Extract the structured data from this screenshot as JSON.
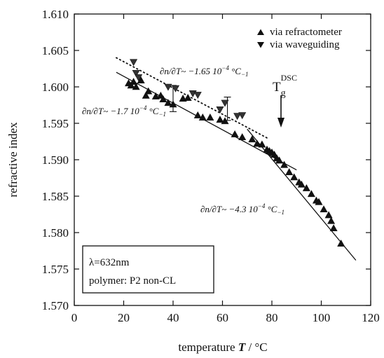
{
  "chart_data": {
    "type": "scatter",
    "xlabel": "temperature T / °C",
    "ylabel": "refractive index",
    "xlim": [
      0,
      120
    ],
    "ylim": [
      1.57,
      1.61
    ],
    "xticks": [
      "0",
      "20",
      "40",
      "60",
      "80",
      "100",
      "120"
    ],
    "yticks": [
      "1.570",
      "1.575",
      "1.580",
      "1.585",
      "1.590",
      "1.595",
      "1.600",
      "1.605",
      "1.610"
    ],
    "grid": false,
    "legend_position": "top-right",
    "series": [
      {
        "name": "via refractometer",
        "marker": "triangle-up",
        "points": [
          [
            22,
            1.6005
          ],
          [
            23,
            1.6002
          ],
          [
            24,
            1.6007
          ],
          [
            25,
            1.6
          ],
          [
            27,
            1.6009
          ],
          [
            29,
            1.5988
          ],
          [
            30,
            1.5994
          ],
          [
            33,
            1.5987
          ],
          [
            35,
            1.5988
          ],
          [
            36,
            1.5983
          ],
          [
            38,
            1.5978
          ],
          [
            40,
            1.5976
          ],
          [
            44,
            1.5984
          ],
          [
            46,
            1.5985
          ],
          [
            50,
            1.5961
          ],
          [
            52,
            1.5958
          ],
          [
            55,
            1.5958
          ],
          [
            59,
            1.5955
          ],
          [
            61,
            1.5953
          ],
          [
            65,
            1.5935
          ],
          [
            68,
            1.5931
          ],
          [
            72,
            1.5928
          ],
          [
            74,
            1.5922
          ],
          [
            76,
            1.5921
          ],
          [
            78,
            1.5914
          ],
          [
            79,
            1.5912
          ],
          [
            80,
            1.591
          ],
          [
            81,
            1.5907
          ],
          [
            82,
            1.5902
          ],
          [
            83,
            1.5899
          ],
          [
            85,
            1.5893
          ],
          [
            87,
            1.5883
          ],
          [
            89,
            1.5876
          ],
          [
            91,
            1.5869
          ],
          [
            92,
            1.5866
          ],
          [
            94,
            1.5861
          ],
          [
            96,
            1.5853
          ],
          [
            98,
            1.5844
          ],
          [
            99,
            1.5842
          ],
          [
            101,
            1.5832
          ],
          [
            103,
            1.5824
          ],
          [
            104,
            1.5816
          ],
          [
            105,
            1.5806
          ],
          [
            108,
            1.5785
          ]
        ]
      },
      {
        "name": "via waveguiding",
        "marker": "triangle-down",
        "points": [
          [
            24,
            1.6034
          ],
          [
            25,
            1.6019
          ],
          [
            26,
            1.6013
          ],
          [
            38,
            1.6
          ],
          [
            41,
            1.5998
          ],
          [
            48,
            1.5991
          ],
          [
            50,
            1.5989
          ],
          [
            59,
            1.5969
          ],
          [
            61,
            1.5978
          ],
          [
            66,
            1.596
          ],
          [
            68,
            1.5961
          ]
        ]
      }
    ],
    "error_bars": [
      {
        "x": 40,
        "y": 1.5984,
        "err": 0.0018
      },
      {
        "x": 62,
        "y": 1.597,
        "err": 0.0016
      }
    ],
    "fit_lines": [
      {
        "style": "solid",
        "from": [
          17,
          1.602
        ],
        "to": [
          90,
          1.5886
        ]
      },
      {
        "style": "solid",
        "from": [
          70,
          1.5942
        ],
        "to": [
          114,
          1.5762
        ]
      },
      {
        "style": "dotted",
        "from": [
          17,
          1.604
        ],
        "to": [
          78,
          1.593
        ]
      }
    ],
    "annotations": [
      {
        "prefix": "∂n/∂T~ ",
        "value": "−1.65 10",
        "exp": "−4",
        "unit": " °C",
        "unitexp": "−1"
      },
      {
        "prefix": "∂n/∂T~ ",
        "value": "−1.7 10",
        "exp": "−4",
        "unit": " °C",
        "unitexp": "−1"
      },
      {
        "prefix": "∂n/∂T~ ",
        "value": "−4.3 10",
        "exp": "−4",
        "unit": " °C",
        "unitexp": "−1"
      }
    ],
    "tg_marker": {
      "label": "T",
      "sub": "g",
      "sup": "DSC",
      "x": 84
    },
    "info_box": {
      "line1": "λ=632nm",
      "line2": "polymer: P2 non-CL"
    }
  }
}
